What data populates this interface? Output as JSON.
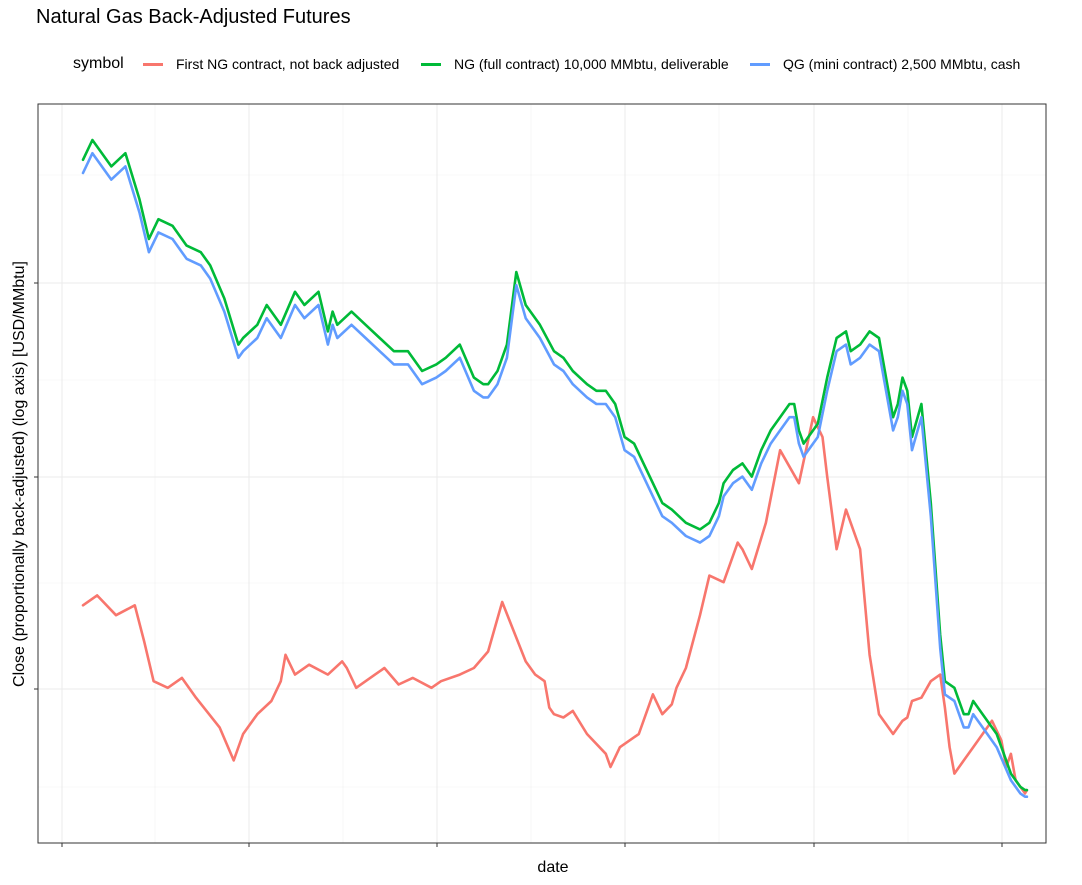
{
  "chart_data": {
    "type": "line",
    "title": "Natural Gas Back-Adjusted Futures",
    "xlabel": "date",
    "ylabel": "Close (proportionally back-adjusted) (log axis) [USD/MMbtu]",
    "x_ticks_labeled": false,
    "y_ticks_labeled": false,
    "y_scale": "log",
    "grid": true,
    "legend": {
      "title": "symbol",
      "position": "top",
      "entries": [
        "First NG contract, not back adjusted",
        "NG (full contract) 10,000 MMbtu, deliverable",
        "QG (mini contract) 2,500  MMbtu, cash"
      ]
    },
    "x_range": [
      0,
      1000
    ],
    "y_range": [
      0,
      100
    ],
    "series": [
      {
        "name": "First NG contract, not back adjusted",
        "color": "#F8766D",
        "x": [
          0,
          15,
          35,
          55,
          65,
          75,
          90,
          105,
          120,
          145,
          160,
          170,
          185,
          200,
          210,
          215,
          225,
          240,
          260,
          275,
          280,
          290,
          300,
          310,
          320,
          335,
          350,
          370,
          380,
          400,
          415,
          430,
          445,
          470,
          480,
          490,
          495,
          500,
          510,
          520,
          535,
          555,
          560,
          570,
          590,
          605,
          615,
          625,
          630,
          640,
          655,
          665,
          680,
          695,
          700,
          710,
          725,
          740,
          760,
          775,
          785,
          790,
          800,
          810,
          825,
          835,
          845,
          860,
          870,
          875,
          880,
          890,
          900,
          910,
          915,
          920,
          925,
          935,
          945,
          955,
          965,
          975,
          980,
          985,
          990,
          995,
          1000,
          1002
        ],
        "y": [
          29.5,
          31,
          28,
          29.5,
          24,
          18,
          17,
          18.5,
          15.5,
          11,
          6,
          10,
          13,
          15,
          18,
          22,
          19,
          20.5,
          19,
          21,
          20,
          17,
          18,
          19,
          20,
          17.5,
          18.5,
          17,
          18,
          19,
          20,
          22.5,
          30,
          21,
          19,
          18,
          14,
          13,
          12.5,
          13.5,
          10,
          7,
          5,
          8,
          10,
          16,
          13,
          14.5,
          17,
          20,
          28,
          34,
          33,
          39,
          38,
          35,
          42,
          53,
          48,
          58,
          55,
          49,
          38,
          44,
          38,
          22,
          13,
          10,
          12,
          12.5,
          15,
          15.5,
          18,
          19,
          14,
          8,
          4,
          6,
          8,
          10,
          12,
          9,
          5,
          7,
          3,
          2,
          1,
          1.5
        ]
      },
      {
        "name": "NG (full contract) 10,000 MMbtu, deliverable",
        "color": "#00BA38",
        "x": [
          0,
          10,
          30,
          45,
          60,
          70,
          80,
          95,
          110,
          125,
          135,
          150,
          165,
          170,
          185,
          195,
          210,
          225,
          235,
          250,
          260,
          265,
          270,
          285,
          300,
          315,
          330,
          345,
          360,
          375,
          385,
          400,
          415,
          425,
          430,
          440,
          450,
          460,
          470,
          485,
          500,
          510,
          520,
          535,
          545,
          555,
          565,
          575,
          585,
          595,
          605,
          615,
          625,
          640,
          655,
          665,
          675,
          680,
          690,
          700,
          710,
          720,
          730,
          740,
          750,
          755,
          760,
          765,
          770,
          780,
          790,
          800,
          810,
          815,
          825,
          835,
          845,
          855,
          860,
          865,
          870,
          875,
          880,
          890,
          900,
          910,
          915,
          925,
          935,
          940,
          945,
          955,
          970,
          985,
          995,
          1000,
          1002
        ],
        "y": [
          97,
          100,
          96,
          98,
          91,
          85,
          88,
          87,
          84,
          83,
          81,
          76,
          69,
          70,
          72,
          75,
          72,
          77,
          75,
          77,
          71,
          74,
          72,
          74,
          72,
          70,
          68,
          68,
          65,
          66,
          67,
          69,
          64,
          63,
          63,
          65,
          69,
          80,
          75,
          72,
          68,
          67,
          65,
          63,
          62,
          62,
          60,
          55,
          54,
          51,
          48,
          45,
          44,
          42,
          41,
          42,
          45,
          48,
          50,
          51,
          49,
          53,
          56,
          58,
          60,
          60,
          56,
          54,
          55,
          57,
          64,
          70,
          71,
          68,
          69,
          71,
          70,
          62,
          58,
          60,
          64,
          62,
          55,
          60,
          45,
          25,
          18,
          17,
          13,
          13,
          15,
          13,
          10,
          4,
          2,
          1.5,
          1.5
        ]
      },
      {
        "name": "QG (mini contract) 2,500  MMbtu, cash",
        "color": "#619CFF",
        "x": [
          0,
          10,
          30,
          45,
          60,
          70,
          80,
          95,
          110,
          125,
          135,
          150,
          165,
          170,
          185,
          195,
          210,
          225,
          235,
          250,
          260,
          265,
          270,
          285,
          300,
          315,
          330,
          345,
          360,
          375,
          385,
          400,
          415,
          425,
          430,
          440,
          450,
          460,
          470,
          485,
          500,
          510,
          520,
          535,
          545,
          555,
          565,
          575,
          585,
          595,
          605,
          615,
          625,
          640,
          655,
          665,
          675,
          680,
          690,
          700,
          710,
          720,
          730,
          740,
          750,
          755,
          760,
          765,
          770,
          780,
          790,
          800,
          810,
          815,
          825,
          835,
          845,
          855,
          860,
          865,
          870,
          875,
          880,
          890,
          900,
          910,
          915,
          925,
          935,
          940,
          945,
          955,
          970,
          985,
          995,
          1000,
          1002
        ],
        "y": [
          95,
          98,
          94,
          96,
          89,
          83,
          86,
          85,
          82,
          81,
          79,
          74,
          67,
          68,
          70,
          73,
          70,
          75,
          73,
          75,
          69,
          72,
          70,
          72,
          70,
          68,
          66,
          66,
          63,
          64,
          65,
          67,
          62,
          61,
          61,
          63,
          67,
          78,
          73,
          70,
          66,
          65,
          63,
          61,
          60,
          60,
          58,
          53,
          52,
          49,
          46,
          43,
          42,
          40,
          39,
          40,
          43,
          46,
          48,
          49,
          47,
          51,
          54,
          56,
          58,
          58,
          54,
          52,
          53,
          55,
          62,
          68,
          69,
          66,
          67,
          69,
          68,
          60,
          56,
          58,
          62,
          60,
          53,
          58,
          43,
          23,
          16,
          15,
          11,
          11,
          13,
          11,
          8,
          3,
          1,
          0.5,
          0.5
        ]
      }
    ]
  }
}
